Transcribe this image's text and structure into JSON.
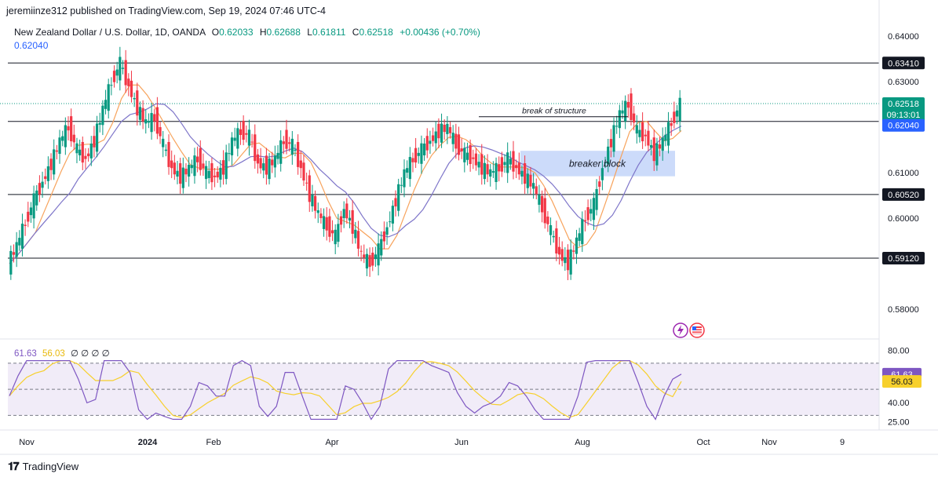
{
  "header": {
    "publisher": "jeremiinze312 published on TradingView.com, Sep 19, 2024 07:46 UTC-4",
    "symbol": "New Zealand Dollar / U.S. Dollar, 1D, OANDA",
    "ohlc": {
      "o_label": "O",
      "o": "0.62033",
      "h_label": "H",
      "h": "0.62688",
      "l_label": "L",
      "l": "0.61811",
      "c_label": "C",
      "c": "0.62518",
      "change": "+0.00436 (+0.70%)"
    },
    "ma_value": "0.62040"
  },
  "rsi_legend": {
    "rsi": "61.63",
    "ma": "56.03",
    "extras": "∅ ∅ ∅ ∅"
  },
  "footer": {
    "brand": "TradingView"
  },
  "colors": {
    "up": "#089981",
    "down": "#f23645",
    "ma_short": "#f7a35c",
    "ma_long": "#7e75c9",
    "rsi_line": "#7e57c2",
    "rsi_ma": "#f7d02c",
    "breaker_fill": "#c7d7fa"
  },
  "chart_data": {
    "type": "candlestick",
    "symbol": "NZDUSD",
    "timeframe": "1D",
    "y_axis": {
      "ticks": [
        "0.64000",
        "0.63000",
        "0.61000",
        "0.60000",
        "0.58000"
      ],
      "range": [
        0.5755,
        0.6445
      ]
    },
    "x_axis": {
      "ticks": [
        "Nov",
        "2024",
        "Feb",
        "Apr",
        "Jun",
        "Aug",
        "Oct",
        "Nov",
        "9"
      ]
    },
    "levels": [
      {
        "value": 0.6341,
        "label": "0.63410"
      },
      {
        "value": 0.62126,
        "label": "0.62126"
      },
      {
        "value": 0.6052,
        "label": "0.60520"
      },
      {
        "value": 0.5912,
        "label": "0.59120"
      }
    ],
    "price_labels": {
      "last": "0.62518",
      "countdown": "09:13:01",
      "ma": "0.62040",
      "level_2": "0.62126"
    },
    "annotations": [
      {
        "text": "break of structure",
        "value": 0.6223
      },
      {
        "text": "breaker block",
        "top": 0.6148,
        "bottom": 0.6092
      }
    ],
    "closes_sample": [
      0.59,
      0.594,
      0.599,
      0.604,
      0.608,
      0.612,
      0.617,
      0.62,
      0.615,
      0.613,
      0.617,
      0.624,
      0.63,
      0.634,
      0.629,
      0.624,
      0.621,
      0.622,
      0.616,
      0.611,
      0.609,
      0.611,
      0.613,
      0.61,
      0.609,
      0.611,
      0.617,
      0.619,
      0.618,
      0.612,
      0.611,
      0.613,
      0.617,
      0.616,
      0.611,
      0.605,
      0.601,
      0.598,
      0.596,
      0.602,
      0.598,
      0.592,
      0.59,
      0.593,
      0.598,
      0.604,
      0.61,
      0.613,
      0.615,
      0.617,
      0.619,
      0.62,
      0.616,
      0.614,
      0.613,
      0.611,
      0.61,
      0.611,
      0.613,
      0.611,
      0.609,
      0.607,
      0.602,
      0.597,
      0.592,
      0.59,
      0.595,
      0.6,
      0.603,
      0.611,
      0.617,
      0.623,
      0.625,
      0.619,
      0.618,
      0.614,
      0.617,
      0.621,
      0.625
    ],
    "rsi_axis": {
      "ticks": [
        "80.00",
        "40.00",
        "25.00"
      ],
      "range": [
        20,
        85
      ],
      "bands": [
        70,
        30
      ]
    },
    "rsi": {
      "last": 61.63,
      "ma_last": 56.03
    }
  }
}
